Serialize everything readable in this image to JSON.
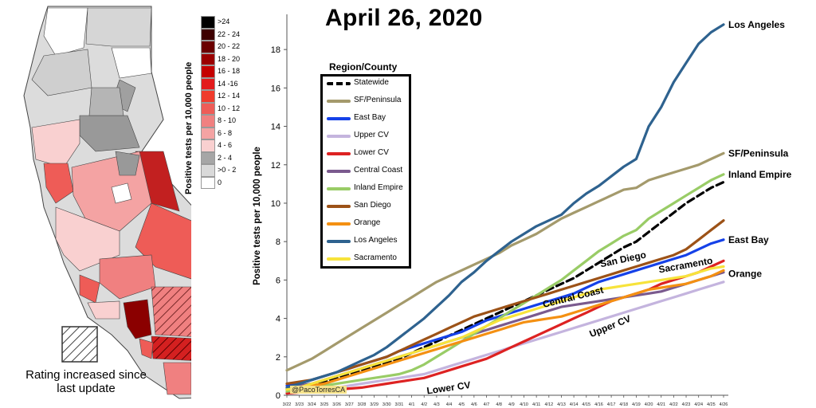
{
  "title": "April 26, 2020",
  "map": {
    "scale_title": "Positive tests per 10,000 people",
    "scale": [
      {
        "label": ">24",
        "color": "#000000"
      },
      {
        "label": "22 - 24",
        "color": "#3d0000"
      },
      {
        "label": "20 - 22",
        "color": "#6b0000"
      },
      {
        "label": "18 - 20",
        "color": "#9b0000"
      },
      {
        "label": "16 - 18",
        "color": "#c40000"
      },
      {
        "label": "14 -16",
        "color": "#e31a1c"
      },
      {
        "label": "12 - 14",
        "color": "#ef3b2c"
      },
      {
        "label": "10 - 12",
        "color": "#ee5c57"
      },
      {
        "label": "8 - 10",
        "color": "#f08080"
      },
      {
        "label": "6 - 8",
        "color": "#f4a3a3"
      },
      {
        "label": "4 - 6",
        "color": "#f9d0d0"
      },
      {
        "label": "2 - 4",
        "color": "#a6a6a6"
      },
      {
        "label": ">0 - 2",
        "color": "#d9d9d9"
      },
      {
        "label": "0",
        "color": "#ffffff"
      }
    ],
    "hatch_note": "Rating increased since last update"
  },
  "legend": {
    "title": "Region/County"
  },
  "credit": "@PacoTorresCA",
  "chart_data": {
    "type": "line",
    "title": "April 26, 2020",
    "ylabel": "Positive tests per 10,000 people",
    "xlabel": "",
    "ylim": [
      0,
      19
    ],
    "yticks": [
      0,
      2,
      4,
      6,
      8,
      10,
      12,
      14,
      16,
      18
    ],
    "grid": false,
    "legend_position": "left-inside",
    "x": [
      "3/22",
      "3/23",
      "3/24",
      "3/25",
      "3/26",
      "3/27",
      "3/28",
      "3/29",
      "3/30",
      "3/31",
      "4/1",
      "4/2",
      "4/3",
      "4/4",
      "4/5",
      "4/6",
      "4/7",
      "4/8",
      "4/9",
      "4/10",
      "4/11",
      "4/12",
      "4/13",
      "4/14",
      "4/15",
      "4/16",
      "4/17",
      "4/18",
      "4/19",
      "4/20",
      "4/21",
      "4/22",
      "4/23",
      "4/24",
      "4/25",
      "4/26"
    ],
    "series": [
      {
        "name": "Statewide",
        "color": "#000000",
        "dash": true,
        "values": [
          0.3,
          0.4,
          0.5,
          0.7,
          0.9,
          1.1,
          1.3,
          1.5,
          1.7,
          1.9,
          2.2,
          2.5,
          2.8,
          3.1,
          3.4,
          3.7,
          4.0,
          4.3,
          4.6,
          4.9,
          5.2,
          5.5,
          5.8,
          6.1,
          6.5,
          6.9,
          7.3,
          7.7,
          8.0,
          8.5,
          9.0,
          9.5,
          10.0,
          10.4,
          10.8,
          11.1
        ]
      },
      {
        "name": "SF/Peninsula",
        "color": "#a49a6c",
        "values": [
          1.3,
          1.6,
          1.9,
          2.3,
          2.7,
          3.1,
          3.5,
          3.9,
          4.3,
          4.7,
          5.1,
          5.5,
          5.9,
          6.2,
          6.5,
          6.8,
          7.1,
          7.4,
          7.8,
          8.1,
          8.4,
          8.8,
          9.2,
          9.5,
          9.8,
          10.1,
          10.4,
          10.7,
          10.8,
          11.2,
          11.4,
          11.6,
          11.8,
          12.0,
          12.3,
          12.6
        ]
      },
      {
        "name": "East Bay",
        "color": "#1541e8",
        "values": [
          0.5,
          0.6,
          0.8,
          1.0,
          1.2,
          1.4,
          1.6,
          1.8,
          2.0,
          2.3,
          2.5,
          2.7,
          2.9,
          3.1,
          3.3,
          3.6,
          3.9,
          4.1,
          4.3,
          4.5,
          4.7,
          4.9,
          5.1,
          5.3,
          5.6,
          5.9,
          6.1,
          6.3,
          6.5,
          6.7,
          6.9,
          7.1,
          7.3,
          7.6,
          7.9,
          8.1
        ]
      },
      {
        "name": "Upper CV",
        "color": "#c4b4de",
        "values": [
          0.1,
          0.15,
          0.2,
          0.3,
          0.4,
          0.5,
          0.6,
          0.7,
          0.8,
          0.9,
          1.0,
          1.1,
          1.3,
          1.5,
          1.7,
          1.9,
          2.1,
          2.3,
          2.5,
          2.7,
          2.9,
          3.1,
          3.3,
          3.5,
          3.7,
          3.9,
          4.1,
          4.3,
          4.5,
          4.7,
          4.9,
          5.1,
          5.3,
          5.5,
          5.7,
          5.9
        ]
      },
      {
        "name": "Lower CV",
        "color": "#dd2222",
        "values": [
          0.1,
          0.15,
          0.2,
          0.25,
          0.3,
          0.35,
          0.4,
          0.5,
          0.6,
          0.7,
          0.8,
          0.9,
          1.1,
          1.3,
          1.5,
          1.7,
          1.9,
          2.2,
          2.5,
          2.8,
          3.1,
          3.4,
          3.7,
          4.0,
          4.3,
          4.6,
          4.9,
          5.1,
          5.3,
          5.5,
          5.8,
          6.0,
          6.2,
          6.4,
          6.7,
          7.0
        ]
      },
      {
        "name": "Central Coast",
        "color": "#7a5a8e",
        "values": [
          0.4,
          0.5,
          0.6,
          0.8,
          1.0,
          1.2,
          1.4,
          1.6,
          1.8,
          2.0,
          2.2,
          2.4,
          2.6,
          2.8,
          3.0,
          3.2,
          3.4,
          3.6,
          3.8,
          4.0,
          4.2,
          4.4,
          4.6,
          4.7,
          4.8,
          4.9,
          5.0,
          5.1,
          5.2,
          5.3,
          5.4,
          5.6,
          5.8,
          6.0,
          6.2,
          6.4
        ]
      },
      {
        "name": "Inland Empire",
        "color": "#99cc66",
        "values": [
          0.2,
          0.3,
          0.4,
          0.5,
          0.6,
          0.7,
          0.8,
          0.9,
          1.0,
          1.1,
          1.3,
          1.6,
          2.0,
          2.4,
          2.8,
          3.2,
          3.6,
          4.0,
          4.4,
          4.8,
          5.2,
          5.6,
          6.0,
          6.5,
          7.0,
          7.5,
          7.9,
          8.3,
          8.6,
          9.2,
          9.6,
          10.0,
          10.4,
          10.8,
          11.2,
          11.5
        ]
      },
      {
        "name": "San Diego",
        "color": "#9c5217",
        "values": [
          0.6,
          0.7,
          0.8,
          1.0,
          1.2,
          1.4,
          1.6,
          1.8,
          2.0,
          2.3,
          2.6,
          2.9,
          3.2,
          3.5,
          3.8,
          4.1,
          4.3,
          4.5,
          4.7,
          4.9,
          5.1,
          5.3,
          5.5,
          5.7,
          5.9,
          6.1,
          6.3,
          6.5,
          6.7,
          6.9,
          7.1,
          7.3,
          7.6,
          8.1,
          8.6,
          9.1
        ]
      },
      {
        "name": "Orange",
        "color": "#f49012",
        "values": [
          0.3,
          0.4,
          0.5,
          0.6,
          0.8,
          1.0,
          1.2,
          1.4,
          1.6,
          1.8,
          2.0,
          2.2,
          2.4,
          2.6,
          2.8,
          3.0,
          3.2,
          3.4,
          3.6,
          3.8,
          3.9,
          4.0,
          4.1,
          4.3,
          4.5,
          4.7,
          4.9,
          5.1,
          5.3,
          5.5,
          5.6,
          5.7,
          5.8,
          6.0,
          6.2,
          6.5
        ]
      },
      {
        "name": "Los Angeles",
        "color": "#2e628f",
        "values": [
          0.4,
          0.6,
          0.8,
          1.0,
          1.2,
          1.5,
          1.8,
          2.1,
          2.5,
          3.0,
          3.5,
          4.0,
          4.6,
          5.2,
          5.9,
          6.4,
          7.0,
          7.5,
          8.0,
          8.4,
          8.8,
          9.1,
          9.4,
          10.0,
          10.5,
          10.9,
          11.4,
          11.9,
          12.3,
          14.0,
          15.0,
          16.3,
          17.3,
          18.3,
          18.9,
          19.3
        ]
      },
      {
        "name": "Sacramento",
        "color": "#f7e33b",
        "values": [
          0.3,
          0.4,
          0.6,
          0.8,
          1.0,
          1.2,
          1.4,
          1.6,
          1.8,
          2.0,
          2.2,
          2.4,
          2.6,
          2.8,
          3.0,
          3.3,
          3.6,
          3.9,
          4.1,
          4.3,
          4.5,
          4.7,
          4.9,
          5.1,
          5.3,
          5.5,
          5.6,
          5.7,
          5.8,
          5.9,
          6.0,
          6.1,
          6.2,
          6.4,
          6.6,
          6.7
        ]
      }
    ],
    "annotations": [
      {
        "text": "Los Angeles",
        "series": "Los Angeles"
      },
      {
        "text": "SF/Peninsula",
        "series": "SF/Peninsula"
      },
      {
        "text": "Inland Empire",
        "series": "Inland Empire"
      },
      {
        "text": "East Bay",
        "series": "East Bay"
      },
      {
        "text": "Orange",
        "series": "Orange"
      },
      {
        "text": "San Diego",
        "series": "San Diego"
      },
      {
        "text": "Sacramento",
        "series": "Sacramento"
      },
      {
        "text": "Central Coast",
        "series": "Central Coast"
      },
      {
        "text": "Upper CV",
        "series": "Upper CV"
      },
      {
        "text": "Lower CV",
        "series": "Lower CV"
      }
    ]
  }
}
